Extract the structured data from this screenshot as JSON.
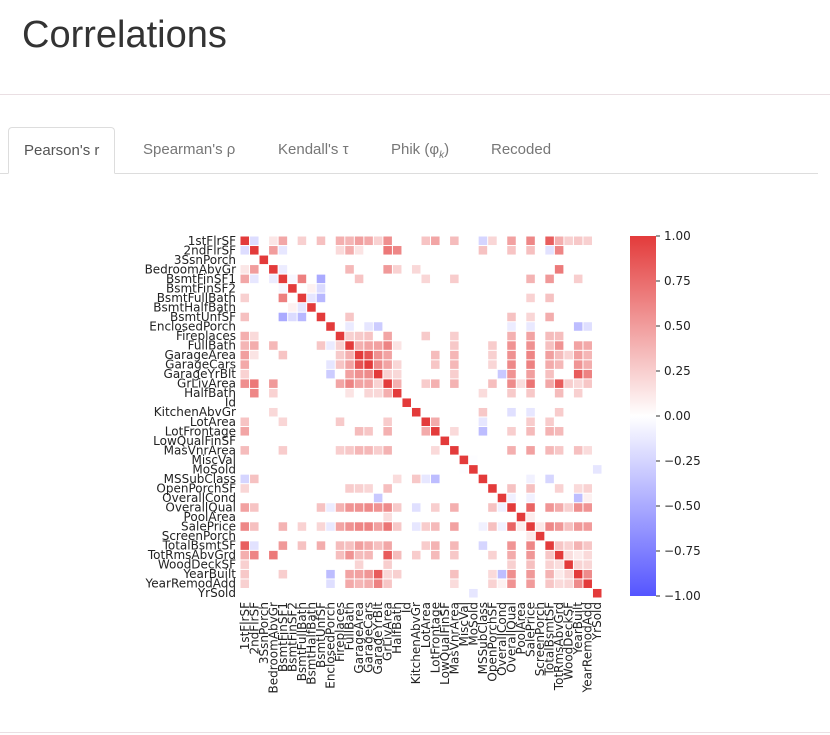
{
  "page": {
    "title": "Correlations"
  },
  "tabs": [
    {
      "label": "Pearson's r",
      "active": true
    },
    {
      "label": "Spearman's ρ",
      "active": false
    },
    {
      "label": "Kendall's τ",
      "active": false
    },
    {
      "label": "Phik (φ",
      "sub": "k",
      "suffix": ")",
      "active": false
    },
    {
      "label": "Recoded",
      "active": false
    }
  ],
  "chart_data": {
    "type": "heatmap",
    "title": "",
    "xlabel": "",
    "ylabel": "",
    "variables": [
      "1stFlrSF",
      "2ndFlrSF",
      "3SsnPorch",
      "BedroomAbvGr",
      "BsmtFinSF1",
      "BsmtFinSF2",
      "BsmtFullBath",
      "BsmtHalfBath",
      "BsmtUnfSF",
      "EnclosedPorch",
      "Fireplaces",
      "FullBath",
      "GarageArea",
      "GarageCars",
      "GarageYrBlt",
      "GrLivArea",
      "HalfBath",
      "Id",
      "KitchenAbvGr",
      "LotArea",
      "LotFrontage",
      "LowQualFinSF",
      "MasVnrArea",
      "MiscVal",
      "MoSold",
      "MSSubClass",
      "OpenPorchSF",
      "OverallCond",
      "OverallQual",
      "PoolArea",
      "SalePrice",
      "ScreenPorch",
      "TotalBsmtSF",
      "TotRmsAbvGrd",
      "WoodDeckSF",
      "YearBuilt",
      "YearRemodAdd",
      "YrSold"
    ],
    "colorscale": {
      "min": -1.0,
      "max": 1.0,
      "negative_color": "#5555ff",
      "zero_color": "#ffffff",
      "positive_color": "#e33b3b"
    },
    "colorbar_ticks": [
      "1.00",
      "0.75",
      "0.50",
      "0.25",
      "0.00",
      "−0.25",
      "−0.50",
      "−0.75",
      "−1.00"
    ],
    "colorbar_tick_values": [
      1.0,
      0.75,
      0.5,
      0.25,
      0.0,
      -0.25,
      -0.5,
      -0.75,
      -1.0
    ],
    "correlations": [
      [
        "1stFlrSF",
        "2ndFlrSF",
        -0.2
      ],
      [
        "1stFlrSF",
        "BedroomAbvGr",
        0.13
      ],
      [
        "1stFlrSF",
        "BsmtFinSF1",
        0.45
      ],
      [
        "1stFlrSF",
        "BsmtFullBath",
        0.24
      ],
      [
        "1stFlrSF",
        "BsmtUnfSF",
        0.32
      ],
      [
        "1stFlrSF",
        "Fireplaces",
        0.41
      ],
      [
        "1stFlrSF",
        "FullBath",
        0.38
      ],
      [
        "1stFlrSF",
        "GarageArea",
        0.49
      ],
      [
        "1stFlrSF",
        "GarageCars",
        0.44
      ],
      [
        "1stFlrSF",
        "GarageYrBlt",
        0.23
      ],
      [
        "1stFlrSF",
        "GrLivArea",
        0.57
      ],
      [
        "1stFlrSF",
        "LotArea",
        0.3
      ],
      [
        "1stFlrSF",
        "LotFrontage",
        0.46
      ],
      [
        "1stFlrSF",
        "MasVnrArea",
        0.34
      ],
      [
        "1stFlrSF",
        "MSSubClass",
        -0.25
      ],
      [
        "1stFlrSF",
        "OverallQual",
        0.48
      ],
      [
        "1stFlrSF",
        "SalePrice",
        0.61
      ],
      [
        "1stFlrSF",
        "TotalBsmtSF",
        0.82
      ],
      [
        "1stFlrSF",
        "TotRmsAbvGrd",
        0.41
      ],
      [
        "1stFlrSF",
        "WoodDeckSF",
        0.24
      ],
      [
        "1stFlrSF",
        "YearBuilt",
        0.28
      ],
      [
        "1stFlrSF",
        "YearRemodAdd",
        0.24
      ],
      [
        "1stFlrSF",
        "OpenPorchSF",
        0.21
      ],
      [
        "2ndFlrSF",
        "BedroomAbvGr",
        0.5
      ],
      [
        "2ndFlrSF",
        "BsmtFinSF1",
        -0.14
      ],
      [
        "2ndFlrSF",
        "BsmtUnfSF",
        0.0
      ],
      [
        "2ndFlrSF",
        "FullBath",
        0.42
      ],
      [
        "2ndFlrSF",
        "GrLivArea",
        0.69
      ],
      [
        "2ndFlrSF",
        "HalfBath",
        0.61
      ],
      [
        "2ndFlrSF",
        "TotRmsAbvGrd",
        0.62
      ],
      [
        "2ndFlrSF",
        "SalePrice",
        0.32
      ],
      [
        "2ndFlrSF",
        "MSSubClass",
        0.31
      ],
      [
        "2ndFlrSF",
        "OverallQual",
        0.3
      ],
      [
        "2ndFlrSF",
        "TotalBsmtSF",
        -0.17
      ],
      [
        "2ndFlrSF",
        "GarageArea",
        0.14
      ],
      [
        "2ndFlrSF",
        "Fireplaces",
        0.19
      ],
      [
        "BedroomAbvGr",
        "FullBath",
        0.36
      ],
      [
        "BedroomAbvGr",
        "GrLivArea",
        0.52
      ],
      [
        "BedroomAbvGr",
        "TotRmsAbvGrd",
        0.68
      ],
      [
        "BedroomAbvGr",
        "HalfBath",
        0.23
      ],
      [
        "BedroomAbvGr",
        "KitchenAbvGr",
        0.2
      ],
      [
        "BedroomAbvGr",
        "BsmtFinSF1",
        -0.11
      ],
      [
        "BsmtFinSF1",
        "BsmtFinSF2",
        -0.05
      ],
      [
        "BsmtFinSF1",
        "BsmtFullBath",
        0.65
      ],
      [
        "BsmtFinSF1",
        "BsmtUnfSF",
        -0.5
      ],
      [
        "BsmtFinSF1",
        "TotalBsmtSF",
        0.52
      ],
      [
        "BsmtFinSF1",
        "SalePrice",
        0.39
      ],
      [
        "BsmtFinSF1",
        "LotArea",
        0.21
      ],
      [
        "BsmtFinSF1",
        "GarageArea",
        0.3
      ],
      [
        "BsmtFinSF1",
        "MasVnrArea",
        0.26
      ],
      [
        "BsmtFinSF1",
        "YearBuilt",
        0.25
      ],
      [
        "BsmtFinSF2",
        "BsmtHalfBath",
        0.07
      ],
      [
        "BsmtFinSF2",
        "BsmtUnfSF",
        -0.21
      ],
      [
        "BsmtFullBath",
        "BsmtHalfBath",
        -0.15
      ],
      [
        "BsmtFullBath",
        "BsmtUnfSF",
        -0.42
      ],
      [
        "BsmtFullBath",
        "TotalBsmtSF",
        0.31
      ],
      [
        "BsmtFullBath",
        "SalePrice",
        0.23
      ],
      [
        "BsmtUnfSF",
        "TotalBsmtSF",
        0.42
      ],
      [
        "BsmtUnfSF",
        "SalePrice",
        0.21
      ],
      [
        "BsmtUnfSF",
        "FullBath",
        0.29
      ],
      [
        "BsmtUnfSF",
        "OverallQual",
        0.31
      ],
      [
        "EnclosedPorch",
        "YearBuilt",
        -0.39
      ],
      [
        "EnclosedPorch",
        "YearRemodAdd",
        -0.19
      ],
      [
        "EnclosedPorch",
        "GarageYrBlt",
        -0.3
      ],
      [
        "EnclosedPorch",
        "GarageCars",
        -0.15
      ],
      [
        "EnclosedPorch",
        "OverallQual",
        -0.11
      ],
      [
        "EnclosedPorch",
        "FullBath",
        -0.12
      ],
      [
        "EnclosedPorch",
        "SalePrice",
        -0.13
      ],
      [
        "Fireplaces",
        "FullBath",
        0.24
      ],
      [
        "Fireplaces",
        "GarageArea",
        0.27
      ],
      [
        "Fireplaces",
        "GarageCars",
        0.3
      ],
      [
        "Fireplaces",
        "GrLivArea",
        0.46
      ],
      [
        "Fireplaces",
        "SalePrice",
        0.47
      ],
      [
        "Fireplaces",
        "TotRmsAbvGrd",
        0.33
      ],
      [
        "Fireplaces",
        "TotalBsmtSF",
        0.34
      ],
      [
        "Fireplaces",
        "OverallQual",
        0.4
      ],
      [
        "Fireplaces",
        "MasVnrArea",
        0.25
      ],
      [
        "Fireplaces",
        "LotArea",
        0.27
      ],
      [
        "FullBath",
        "GarageArea",
        0.41
      ],
      [
        "FullBath",
        "GarageCars",
        0.47
      ],
      [
        "FullBath",
        "GarageYrBlt",
        0.48
      ],
      [
        "FullBath",
        "GrLivArea",
        0.63
      ],
      [
        "FullBath",
        "HalfBath",
        0.14
      ],
      [
        "FullBath",
        "OverallQual",
        0.55
      ],
      [
        "FullBath",
        "SalePrice",
        0.56
      ],
      [
        "FullBath",
        "TotRmsAbvGrd",
        0.55
      ],
      [
        "FullBath",
        "TotalBsmtSF",
        0.32
      ],
      [
        "FullBath",
        "YearBuilt",
        0.47
      ],
      [
        "FullBath",
        "YearRemodAdd",
        0.44
      ],
      [
        "FullBath",
        "MasVnrArea",
        0.28
      ],
      [
        "FullBath",
        "OpenPorchSF",
        0.26
      ],
      [
        "GarageArea",
        "GarageCars",
        0.88
      ],
      [
        "GarageArea",
        "GarageYrBlt",
        0.56
      ],
      [
        "GarageArea",
        "GrLivArea",
        0.47
      ],
      [
        "GarageArea",
        "OverallQual",
        0.56
      ],
      [
        "GarageArea",
        "SalePrice",
        0.62
      ],
      [
        "GarageArea",
        "TotalBsmtSF",
        0.49
      ],
      [
        "GarageArea",
        "TotRmsAbvGrd",
        0.34
      ],
      [
        "GarageArea",
        "YearBuilt",
        0.48
      ],
      [
        "GarageArea",
        "YearRemodAdd",
        0.37
      ],
      [
        "GarageArea",
        "MasVnrArea",
        0.37
      ],
      [
        "GarageArea",
        "WoodDeckSF",
        0.22
      ],
      [
        "GarageArea",
        "OpenPorchSF",
        0.24
      ],
      [
        "GarageArea",
        "LotFrontage",
        0.34
      ],
      [
        "GarageCars",
        "GarageYrBlt",
        0.59
      ],
      [
        "GarageCars",
        "GrLivArea",
        0.47
      ],
      [
        "GarageCars",
        "OverallQual",
        0.6
      ],
      [
        "GarageCars",
        "SalePrice",
        0.64
      ],
      [
        "GarageCars",
        "TotalBsmtSF",
        0.43
      ],
      [
        "GarageCars",
        "TotRmsAbvGrd",
        0.36
      ],
      [
        "GarageCars",
        "YearBuilt",
        0.54
      ],
      [
        "GarageCars",
        "YearRemodAdd",
        0.42
      ],
      [
        "GarageCars",
        "MasVnrArea",
        0.36
      ],
      [
        "GarageCars",
        "HalfBath",
        0.21
      ],
      [
        "GarageCars",
        "OpenPorchSF",
        0.21
      ],
      [
        "GarageCars",
        "LotFrontage",
        0.29
      ],
      [
        "GarageYrBlt",
        "YearBuilt",
        0.83
      ],
      [
        "GarageYrBlt",
        "YearRemodAdd",
        0.64
      ],
      [
        "GarageYrBlt",
        "OverallQual",
        0.55
      ],
      [
        "GarageYrBlt",
        "SalePrice",
        0.49
      ],
      [
        "GarageYrBlt",
        "OverallCond",
        -0.32
      ],
      [
        "GarageYrBlt",
        "TotalBsmtSF",
        0.32
      ],
      [
        "GarageYrBlt",
        "GrLivArea",
        0.23
      ],
      [
        "GarageYrBlt",
        "HalfBath",
        0.2
      ],
      [
        "GarageYrBlt",
        "MasVnrArea",
        0.25
      ],
      [
        "GrLivArea",
        "HalfBath",
        0.41
      ],
      [
        "GrLivArea",
        "OverallQual",
        0.59
      ],
      [
        "GrLivArea",
        "SalePrice",
        0.71
      ],
      [
        "GrLivArea",
        "TotRmsAbvGrd",
        0.83
      ],
      [
        "GrLivArea",
        "TotalBsmtSF",
        0.45
      ],
      [
        "GrLivArea",
        "MasVnrArea",
        0.39
      ],
      [
        "GrLivArea",
        "LotFrontage",
        0.4
      ],
      [
        "GrLivArea",
        "LotArea",
        0.26
      ],
      [
        "GrLivArea",
        "YearBuilt",
        0.2
      ],
      [
        "GrLivArea",
        "YearRemodAdd",
        0.29
      ],
      [
        "GrLivArea",
        "OpenPorchSF",
        0.33
      ],
      [
        "GrLivArea",
        "WoodDeckSF",
        0.25
      ],
      [
        "HalfBath",
        "TotRmsAbvGrd",
        0.34
      ],
      [
        "HalfBath",
        "SalePrice",
        0.28
      ],
      [
        "HalfBath",
        "OverallQual",
        0.27
      ],
      [
        "HalfBath",
        "YearBuilt",
        0.24
      ],
      [
        "HalfBath",
        "MSSubClass",
        0.18
      ],
      [
        "KitchenAbvGr",
        "MSSubClass",
        0.28
      ],
      [
        "KitchenAbvGr",
        "TotRmsAbvGrd",
        0.26
      ],
      [
        "KitchenAbvGr",
        "SalePrice",
        -0.14
      ],
      [
        "KitchenAbvGr",
        "OverallQual",
        -0.18
      ],
      [
        "LotArea",
        "LotFrontage",
        0.43
      ],
      [
        "LotArea",
        "SalePrice",
        0.26
      ],
      [
        "LotArea",
        "TotalBsmtSF",
        0.26
      ],
      [
        "LotArea",
        "MSSubClass",
        -0.14
      ],
      [
        "LotFrontage",
        "MSSubClass",
        -0.39
      ],
      [
        "LotFrontage",
        "SalePrice",
        0.35
      ],
      [
        "LotFrontage",
        "TotalBsmtSF",
        0.39
      ],
      [
        "LotFrontage",
        "TotRmsAbvGrd",
        0.35
      ],
      [
        "LotFrontage",
        "OverallQual",
        0.25
      ],
      [
        "LotFrontage",
        "MasVnrArea",
        0.19
      ],
      [
        "MasVnrArea",
        "OverallQual",
        0.41
      ],
      [
        "MasVnrArea",
        "SalePrice",
        0.48
      ],
      [
        "MasVnrArea",
        "TotalBsmtSF",
        0.36
      ],
      [
        "MasVnrArea",
        "TotRmsAbvGrd",
        0.28
      ],
      [
        "MasVnrArea",
        "YearBuilt",
        0.32
      ],
      [
        "MasVnrArea",
        "YearRemodAdd",
        0.18
      ],
      [
        "MSSubClass",
        "TotalBsmtSF",
        -0.24
      ],
      [
        "MSSubClass",
        "SalePrice",
        -0.08
      ],
      [
        "OpenPorchSF",
        "OverallQual",
        0.31
      ],
      [
        "OpenPorchSF",
        "SalePrice",
        0.32
      ],
      [
        "OpenPorchSF",
        "TotRmsAbvGrd",
        0.23
      ],
      [
        "OpenPorchSF",
        "YearBuilt",
        0.19
      ],
      [
        "OpenPorchSF",
        "YearRemodAdd",
        0.23
      ],
      [
        "OverallCond",
        "YearBuilt",
        -0.38
      ],
      [
        "OverallCond",
        "YearRemodAdd",
        0.07
      ],
      [
        "OverallCond",
        "OverallQual",
        -0.09
      ],
      [
        "OverallCond",
        "SalePrice",
        -0.08
      ],
      [
        "OverallQual",
        "SalePrice",
        0.79
      ],
      [
        "OverallQual",
        "TotalBsmtSF",
        0.54
      ],
      [
        "OverallQual",
        "TotRmsAbvGrd",
        0.43
      ],
      [
        "OverallQual",
        "YearBuilt",
        0.57
      ],
      [
        "OverallQual",
        "YearRemodAdd",
        0.55
      ],
      [
        "OverallQual",
        "WoodDeckSF",
        0.24
      ],
      [
        "PoolArea",
        "SalePrice",
        0.09
      ],
      [
        "PoolArea",
        "GrLivArea",
        0.17
      ],
      [
        "SalePrice",
        "TotalBsmtSF",
        0.61
      ],
      [
        "SalePrice",
        "TotRmsAbvGrd",
        0.53
      ],
      [
        "SalePrice",
        "WoodDeckSF",
        0.32
      ],
      [
        "SalePrice",
        "YearBuilt",
        0.52
      ],
      [
        "SalePrice",
        "YearRemodAdd",
        0.51
      ],
      [
        "SalePrice",
        "ScreenPorch",
        0.11
      ],
      [
        "TotalBsmtSF",
        "TotRmsAbvGrd",
        0.29
      ],
      [
        "TotalBsmtSF",
        "YearBuilt",
        0.39
      ],
      [
        "TotalBsmtSF",
        "YearRemodAdd",
        0.29
      ],
      [
        "TotalBsmtSF",
        "WoodDeckSF",
        0.23
      ],
      [
        "TotRmsAbvGrd",
        "YearBuilt",
        0.1
      ],
      [
        "TotRmsAbvGrd",
        "YearRemodAdd",
        0.19
      ],
      [
        "TotRmsAbvGrd",
        "WoodDeckSF",
        0.17
      ],
      [
        "WoodDeckSF",
        "YearBuilt",
        0.22
      ],
      [
        "WoodDeckSF",
        "YearRemodAdd",
        0.21
      ],
      [
        "YearBuilt",
        "YearRemodAdd",
        0.59
      ],
      [
        "MoSold",
        "YrSold",
        -0.15
      ],
      [
        "MiscVal",
        "MoSold",
        -0.01
      ]
    ]
  }
}
